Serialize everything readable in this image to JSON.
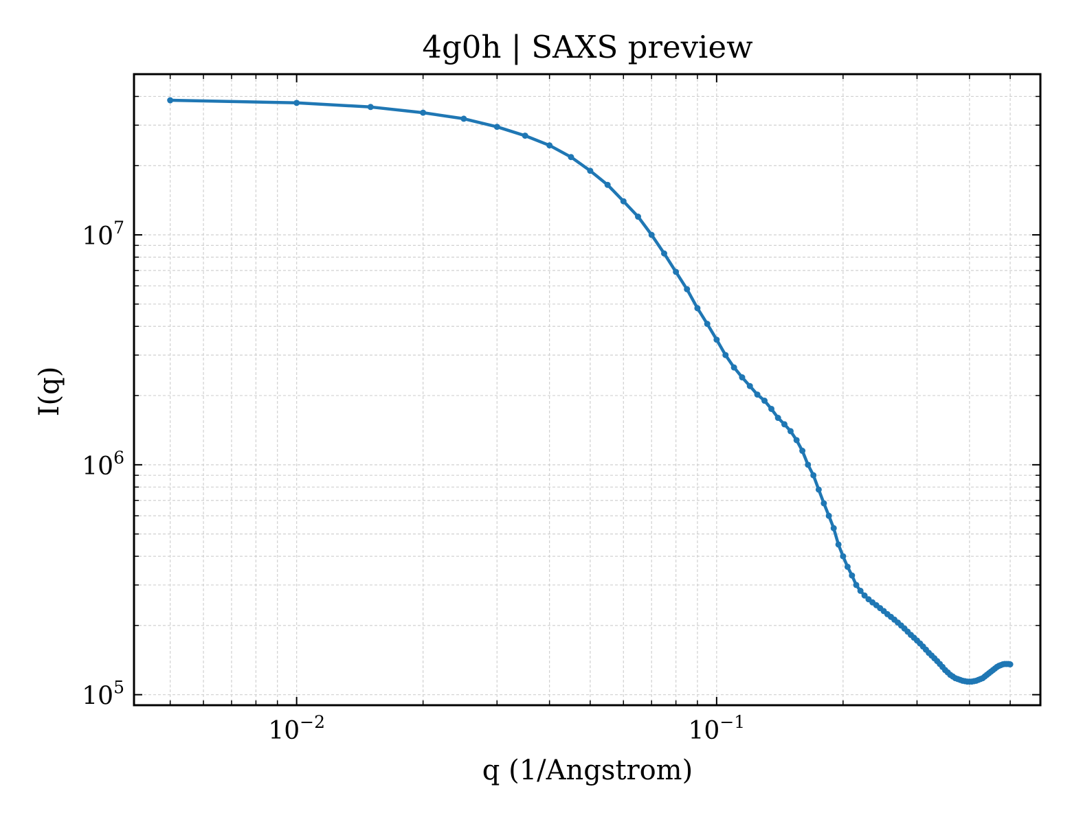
{
  "chart_data": {
    "type": "line",
    "title": "4g0h | SAXS preview",
    "xlabel": "q (1/Angstrom)",
    "ylabel": "I(q)",
    "xscale": "log",
    "yscale": "log",
    "xlim": [
      0.0041,
      0.59
    ],
    "ylim": [
      90000,
      50000000
    ],
    "grid": true,
    "x_tick_labels": [
      {
        "value": 0.01,
        "base": "10",
        "exp": "−2"
      },
      {
        "value": 0.1,
        "base": "10",
        "exp": "−1"
      }
    ],
    "y_tick_labels": [
      {
        "value": 100000,
        "base": "10",
        "exp": "5"
      },
      {
        "value": 1000000,
        "base": "10",
        "exp": "6"
      },
      {
        "value": 10000000,
        "base": "10",
        "exp": "7"
      }
    ],
    "series": [
      {
        "color": "#1f77b4",
        "x": [
          0.005,
          0.01,
          0.015,
          0.02,
          0.025,
          0.03,
          0.035,
          0.04,
          0.045,
          0.05,
          0.055,
          0.06,
          0.065,
          0.07,
          0.075,
          0.08,
          0.085,
          0.09,
          0.095,
          0.1,
          0.105,
          0.11,
          0.115,
          0.12,
          0.125,
          0.13,
          0.135,
          0.14,
          0.145,
          0.15,
          0.155,
          0.16,
          0.165,
          0.17,
          0.175,
          0.18,
          0.185,
          0.19,
          0.195,
          0.2,
          0.205,
          0.21,
          0.215,
          0.22,
          0.225,
          0.23,
          0.235,
          0.24,
          0.245,
          0.25,
          0.255,
          0.26,
          0.265,
          0.27,
          0.275,
          0.28,
          0.285,
          0.29,
          0.295,
          0.3,
          0.305,
          0.31,
          0.315,
          0.32,
          0.325,
          0.33,
          0.335,
          0.34,
          0.345,
          0.35,
          0.355,
          0.36,
          0.365,
          0.37,
          0.375,
          0.38,
          0.385,
          0.39,
          0.395,
          0.4,
          0.405,
          0.41,
          0.415,
          0.42,
          0.425,
          0.43,
          0.435,
          0.44,
          0.445,
          0.45,
          0.455,
          0.46,
          0.465,
          0.47,
          0.475,
          0.48,
          0.485,
          0.49,
          0.495,
          0.5
        ],
        "y": [
          38500000,
          37500000,
          36000000,
          34000000,
          32000000,
          29500000,
          27000000,
          24500000,
          21800000,
          19000000,
          16500000,
          14000000,
          12000000,
          10000000,
          8300000,
          6900000,
          5800000,
          4800000,
          4100000,
          3500000,
          3000000,
          2650000,
          2400000,
          2200000,
          2020000,
          1900000,
          1750000,
          1600000,
          1500000,
          1400000,
          1280000,
          1150000,
          1000000,
          900000,
          780000,
          680000,
          600000,
          530000,
          450000,
          400000,
          360000,
          330000,
          300000,
          283000,
          270000,
          260000,
          252000,
          245000,
          238000,
          231000,
          224000,
          218000,
          212000,
          206000,
          200000,
          194000,
          188000,
          182000,
          177000,
          172000,
          167000,
          162000,
          157000,
          152000,
          148000,
          144000,
          140000,
          136000,
          132000,
          128000,
          125000,
          122000,
          120000,
          118000,
          117000,
          116000,
          115000,
          114500,
          114000,
          114000,
          114000,
          114500,
          115000,
          116000,
          117000,
          118000,
          120000,
          122000,
          124000,
          126000,
          128000,
          130000,
          132000,
          133500,
          134500,
          135500,
          136000,
          136000,
          136000,
          135500
        ]
      }
    ]
  }
}
